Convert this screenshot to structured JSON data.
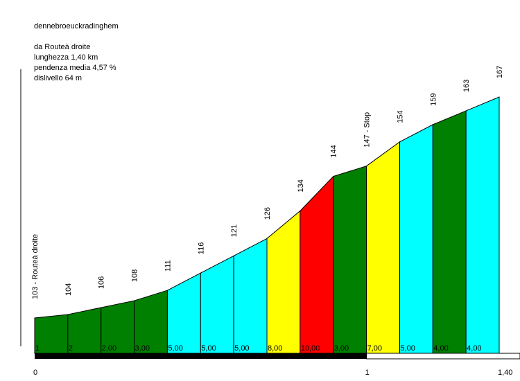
{
  "info": {
    "name": "dennebroeuckradinghem",
    "from": "da Routeà droite",
    "length": "lunghezza 1,40 km",
    "gradient": "pendenza media 4,57 %",
    "gain": "dislivello 64 m"
  },
  "chart_data": {
    "type": "area",
    "title": "dennebroeuckradinghem",
    "x_unit": "km",
    "xlim": [
      0,
      1.4
    ],
    "ylim": [
      103,
      167
    ],
    "segment_length_km": 0.1,
    "altitudes": [
      103,
      104,
      106,
      108,
      111,
      116,
      121,
      126,
      134,
      144,
      147,
      154,
      159,
      163,
      167
    ],
    "altitude_labels": [
      "103 - Routeà droite",
      "104",
      "106",
      "108",
      "111",
      "116",
      "121",
      "126",
      "134",
      "144",
      "147 - Stop",
      "154",
      "159",
      "163",
      "167"
    ],
    "gradient_labels": [
      "1",
      "2",
      "2,00",
      "3,00",
      "5,00",
      "5,00",
      "5,00",
      "8,00",
      "10,00",
      "3,00",
      "7,00",
      "5,00",
      "4,00",
      "4,00"
    ],
    "segment_colors": [
      "#008000",
      "#008000",
      "#008000",
      "#008000",
      "#00FFFF",
      "#00FFFF",
      "#00FFFF",
      "#FFFF00",
      "#FF0000",
      "#008000",
      "#FFFF00",
      "#00FFFF",
      "#008000",
      "#00FFFF"
    ],
    "x_tick_labels": [
      "0",
      "1",
      "1,40"
    ],
    "x_ticks_km": [
      0,
      1,
      1.4
    ]
  }
}
